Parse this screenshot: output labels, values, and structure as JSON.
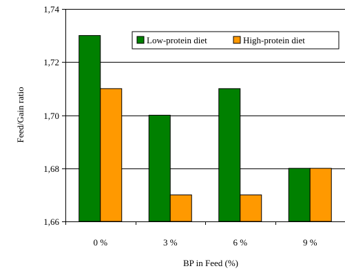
{
  "chart_data": {
    "type": "bar",
    "title": "",
    "xlabel": "BP in Feed (%)",
    "ylabel": "Feed/Gain ratio",
    "categories": [
      "0 %",
      "3 %",
      "6 %",
      "9 %"
    ],
    "series": [
      {
        "name": "Low-protein diet",
        "values": [
          1.73,
          1.7,
          1.71,
          1.68
        ],
        "color": "#008000"
      },
      {
        "name": "High-protein diet",
        "values": [
          1.71,
          1.67,
          1.67,
          1.68
        ],
        "color": "#ff9900"
      }
    ],
    "ylim": [
      1.66,
      1.74
    ],
    "yticks": [
      1.66,
      1.68,
      1.7,
      1.72,
      1.74
    ],
    "ytick_labels": [
      "1,66",
      "1,68",
      "1,70",
      "1,72",
      "1,74"
    ],
    "grid": true,
    "legend_position": "top-right"
  }
}
